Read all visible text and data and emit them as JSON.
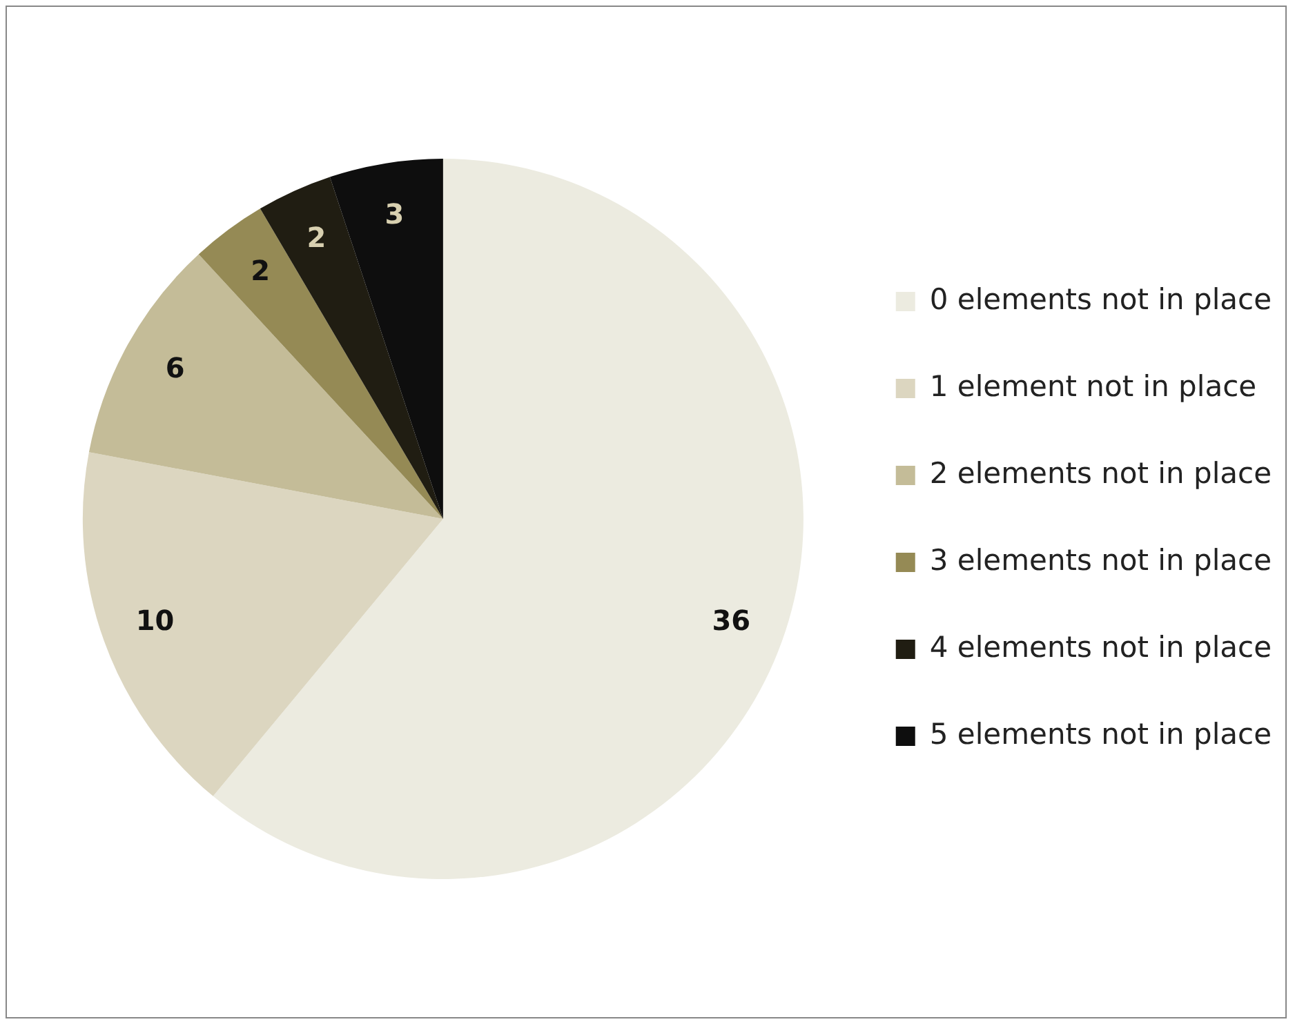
{
  "chart_data": {
    "type": "pie",
    "categories": [
      "0 elements not in place",
      "1 element not in place",
      "2 elements not in place",
      "3 elements not in place",
      "4 elements not in place",
      "5 elements not in place"
    ],
    "values": [
      36,
      10,
      6,
      2,
      2,
      3
    ],
    "colors": [
      "#ecebe0",
      "#dcd6c0",
      "#c4bc98",
      "#958a55",
      "#201d12",
      "#0e0e0e"
    ],
    "data_labels": true,
    "legend": "right"
  }
}
